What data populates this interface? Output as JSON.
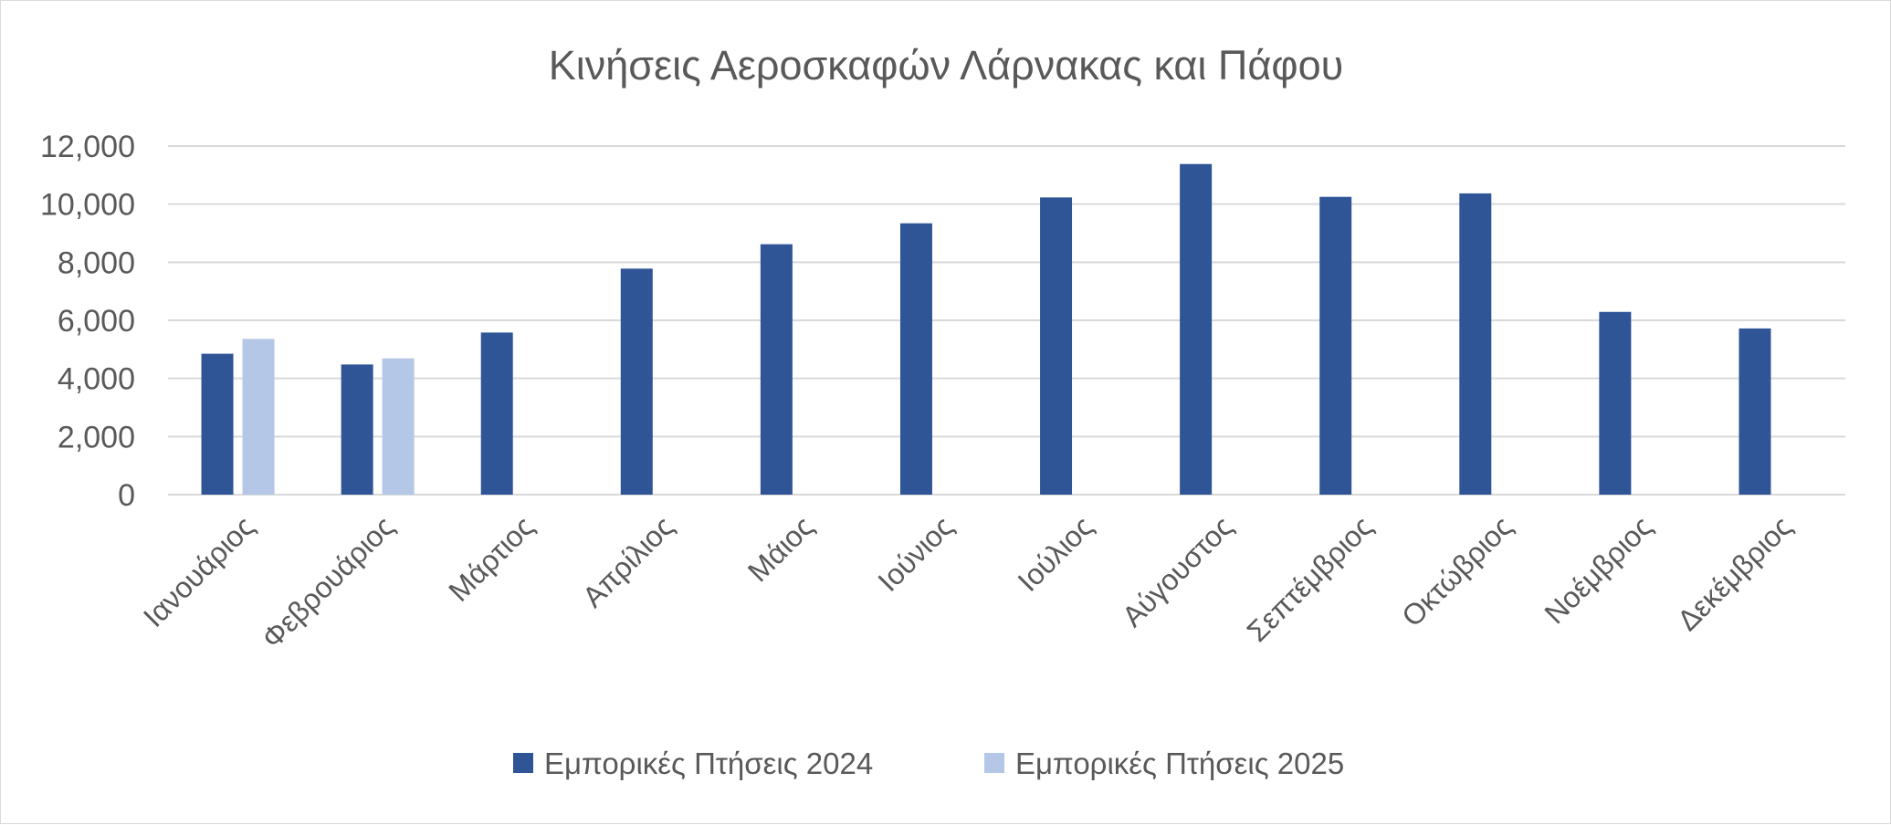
{
  "chart_data": {
    "type": "bar",
    "title": "Κινήσεις Αεροσκαφών Λάρνακας και Πάφου",
    "categories": [
      "Ιανουάριος",
      "Φεβρουάριος",
      "Μάρτιος",
      "Απρίλιος",
      "Μάιος",
      "Ιούνιος",
      "Ιούλιος",
      "Αύγουστος",
      "Σεπτέμβριος",
      "Οκτώβριος",
      "Νοέμβριος",
      "Δεκέμβριος"
    ],
    "series": [
      {
        "name": "Εμπορικές Πτήσεις 2024",
        "color": "#2f5597",
        "values": [
          4850,
          4480,
          5580,
          7780,
          8620,
          9340,
          10230,
          11380,
          10250,
          10370,
          6290,
          5720
        ]
      },
      {
        "name": "Εμπορικές Πτήσεις  2025",
        "color": "#b4c7e7",
        "values": [
          5360,
          4690,
          null,
          null,
          null,
          null,
          null,
          null,
          null,
          null,
          null,
          null
        ]
      }
    ],
    "ylim": [
      0,
      12000
    ],
    "yticks": [
      0,
      2000,
      4000,
      6000,
      8000,
      10000,
      12000
    ],
    "ytick_labels": [
      "0",
      "2,000",
      "4,000",
      "6,000",
      "8,000",
      "10,000",
      "12,000"
    ],
    "xlabel": "",
    "ylabel": "",
    "grid": true,
    "legend_position": "bottom"
  }
}
